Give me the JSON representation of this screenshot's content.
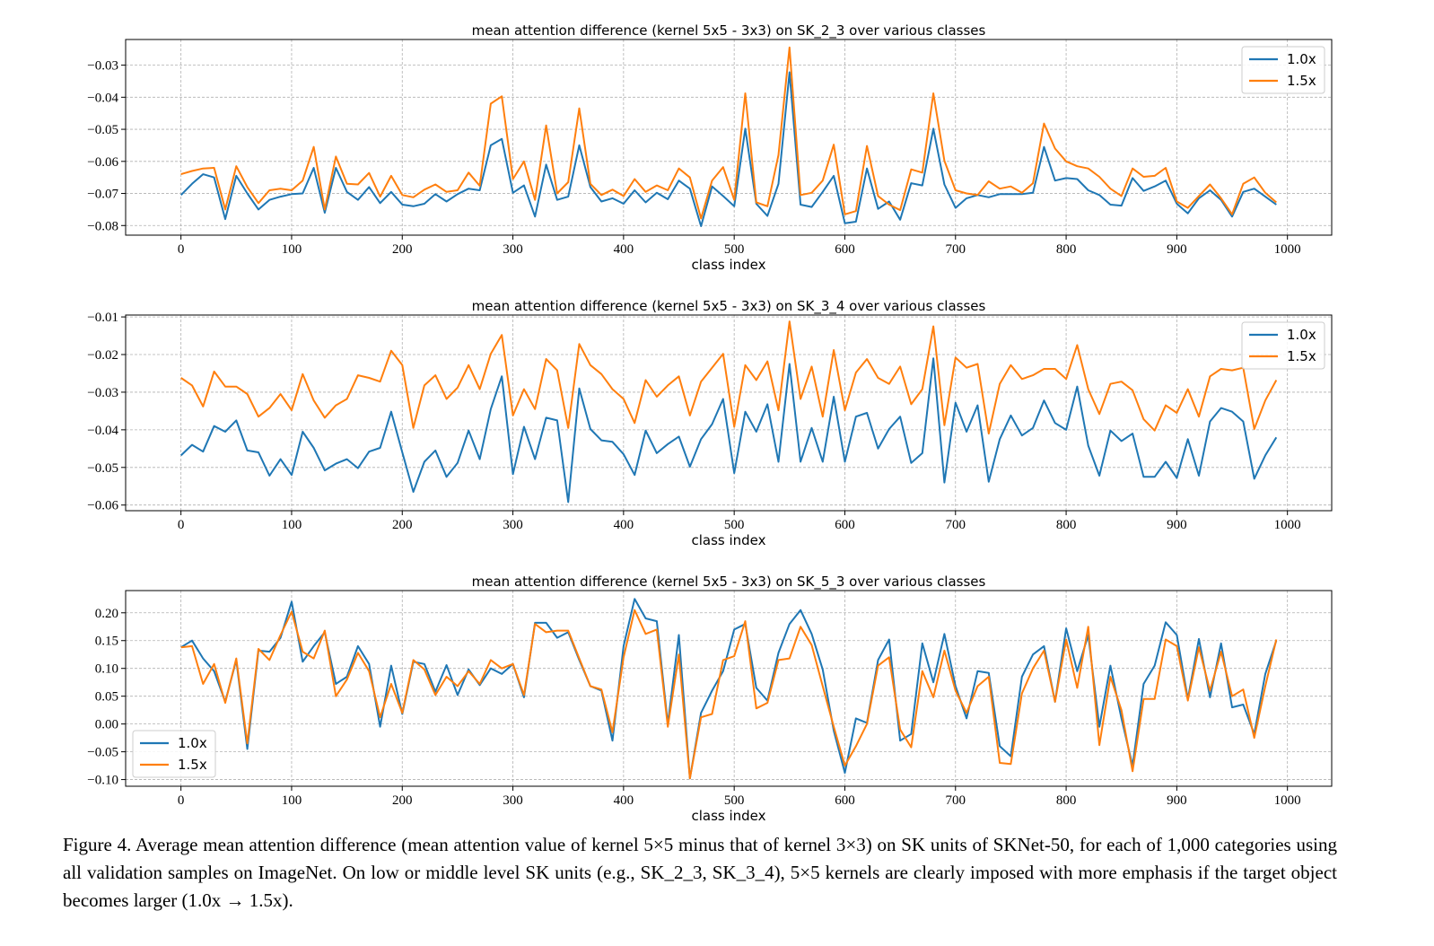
{
  "caption": "Figure 4. Average mean attention difference (mean attention value of kernel 5×5 minus that of kernel 3×3) on SK units of SKNet-50, for each of 1,000 categories using all validation samples on ImageNet. On low or middle level SK units (e.g., SK_2_3, SK_3_4), 5×5 kernels are clearly imposed with more emphasis if the target object becomes larger (1.0x → 1.5x).",
  "colors": {
    "s1": "#1f77b4",
    "s2": "#ff7f0e",
    "grid": "#b0b0b0"
  },
  "chart_data": [
    {
      "type": "line",
      "title": "mean attention difference (kernel 5x5 - 3x3) on SK_2_3 over various classes",
      "xlabel": "class index",
      "xlim": [
        -50,
        1040
      ],
      "xticks": [
        0,
        100,
        200,
        300,
        400,
        500,
        600,
        700,
        800,
        900,
        1000
      ],
      "ylim": [
        -0.083,
        -0.022
      ],
      "yticks": [
        -0.08,
        -0.07,
        -0.06,
        -0.05,
        -0.04,
        -0.03
      ],
      "ytick_labels": [
        "−0.08",
        "−0.07",
        "−0.06",
        "−0.05",
        "−0.04",
        "−0.03"
      ],
      "legend": "top-right",
      "grid": true,
      "x": [
        0,
        10,
        20,
        30,
        40,
        50,
        60,
        70,
        80,
        90,
        100,
        110,
        120,
        130,
        140,
        150,
        160,
        170,
        180,
        190,
        200,
        210,
        220,
        230,
        240,
        250,
        260,
        270,
        280,
        290,
        300,
        310,
        320,
        330,
        340,
        350,
        360,
        370,
        380,
        390,
        400,
        410,
        420,
        430,
        440,
        450,
        460,
        470,
        480,
        490,
        500,
        510,
        520,
        530,
        540,
        550,
        560,
        570,
        580,
        590,
        600,
        610,
        620,
        630,
        640,
        650,
        660,
        670,
        680,
        690,
        700,
        710,
        720,
        730,
        740,
        750,
        760,
        770,
        780,
        790,
        800,
        810,
        820,
        830,
        840,
        850,
        860,
        870,
        880,
        890,
        900,
        910,
        920,
        930,
        940,
        950,
        960,
        970,
        980,
        990
      ],
      "series": [
        {
          "name": "1.0x",
          "values": [
            -0.0705,
            -0.067,
            -0.064,
            -0.065,
            -0.078,
            -0.0645,
            -0.07,
            -0.075,
            -0.072,
            -0.071,
            -0.0702,
            -0.07,
            -0.062,
            -0.076,
            -0.062,
            -0.0695,
            -0.072,
            -0.068,
            -0.073,
            -0.0695,
            -0.0735,
            -0.074,
            -0.0732,
            -0.0702,
            -0.0725,
            -0.0702,
            -0.0685,
            -0.069,
            -0.055,
            -0.053,
            -0.0698,
            -0.0675,
            -0.0772,
            -0.061,
            -0.072,
            -0.071,
            -0.055,
            -0.068,
            -0.0725,
            -0.0715,
            -0.0732,
            -0.069,
            -0.0728,
            -0.0698,
            -0.0718,
            -0.066,
            -0.0685,
            -0.0802,
            -0.0678,
            -0.0708,
            -0.074,
            -0.0498,
            -0.0732,
            -0.077,
            -0.067,
            -0.0322,
            -0.0735,
            -0.0742,
            -0.0695,
            -0.0645,
            -0.0793,
            -0.0788,
            -0.0622,
            -0.0748,
            -0.0725,
            -0.0782,
            -0.0668,
            -0.0675,
            -0.0498,
            -0.0672,
            -0.0745,
            -0.0715,
            -0.0705,
            -0.0712,
            -0.0702,
            -0.0702,
            -0.0702,
            -0.0698,
            -0.0555,
            -0.066,
            -0.0652,
            -0.0655,
            -0.069,
            -0.0705,
            -0.0735,
            -0.0738,
            -0.0652,
            -0.0692,
            -0.0678,
            -0.066,
            -0.0732,
            -0.0762,
            -0.0715,
            -0.069,
            -0.072,
            -0.0772,
            -0.0695,
            -0.0685,
            -0.071,
            -0.0735
          ]
        },
        {
          "name": "1.5x",
          "values": [
            -0.064,
            -0.063,
            -0.0622,
            -0.062,
            -0.075,
            -0.0615,
            -0.068,
            -0.073,
            -0.069,
            -0.0685,
            -0.069,
            -0.066,
            -0.0555,
            -0.075,
            -0.0585,
            -0.067,
            -0.0672,
            -0.0636,
            -0.071,
            -0.0645,
            -0.0705,
            -0.0712,
            -0.0688,
            -0.0672,
            -0.0695,
            -0.069,
            -0.0635,
            -0.0676,
            -0.042,
            -0.0397,
            -0.0655,
            -0.06,
            -0.072,
            -0.0488,
            -0.07,
            -0.0665,
            -0.0435,
            -0.067,
            -0.0705,
            -0.0688,
            -0.0708,
            -0.0655,
            -0.0695,
            -0.0675,
            -0.069,
            -0.0622,
            -0.065,
            -0.0778,
            -0.066,
            -0.0618,
            -0.072,
            -0.0388,
            -0.0728,
            -0.074,
            -0.058,
            -0.0245,
            -0.0705,
            -0.0698,
            -0.066,
            -0.0548,
            -0.0765,
            -0.0755,
            -0.0552,
            -0.0708,
            -0.0735,
            -0.0752,
            -0.0625,
            -0.0635,
            -0.0388,
            -0.0598,
            -0.069,
            -0.07,
            -0.0705,
            -0.0662,
            -0.0685,
            -0.0678,
            -0.0698,
            -0.0668,
            -0.0482,
            -0.056,
            -0.06,
            -0.0615,
            -0.0622,
            -0.0648,
            -0.0685,
            -0.0708,
            -0.0622,
            -0.0648,
            -0.0645,
            -0.062,
            -0.0725,
            -0.0745,
            -0.0708,
            -0.0672,
            -0.0715,
            -0.0765,
            -0.067,
            -0.065,
            -0.0698,
            -0.0728
          ]
        }
      ]
    },
    {
      "type": "line",
      "title": "mean attention difference (kernel 5x5 - 3x3) on SK_3_4 over various classes",
      "xlabel": "class index",
      "xlim": [
        -50,
        1040
      ],
      "xticks": [
        0,
        100,
        200,
        300,
        400,
        500,
        600,
        700,
        800,
        900,
        1000
      ],
      "ylim": [
        -0.0615,
        -0.0095
      ],
      "yticks": [
        -0.06,
        -0.05,
        -0.04,
        -0.03,
        -0.02,
        -0.01
      ],
      "ytick_labels": [
        "−0.06",
        "−0.05",
        "−0.04",
        "−0.03",
        "−0.02",
        "−0.01"
      ],
      "legend": "top-right",
      "grid": true,
      "x": [
        0,
        10,
        20,
        30,
        40,
        50,
        60,
        70,
        80,
        90,
        100,
        110,
        120,
        130,
        140,
        150,
        160,
        170,
        180,
        190,
        200,
        210,
        220,
        230,
        240,
        250,
        260,
        270,
        280,
        290,
        300,
        310,
        320,
        330,
        340,
        350,
        360,
        370,
        380,
        390,
        400,
        410,
        420,
        430,
        440,
        450,
        460,
        470,
        480,
        490,
        500,
        510,
        520,
        530,
        540,
        550,
        560,
        570,
        580,
        590,
        600,
        610,
        620,
        630,
        640,
        650,
        660,
        670,
        680,
        690,
        700,
        710,
        720,
        730,
        740,
        750,
        760,
        770,
        780,
        790,
        800,
        810,
        820,
        830,
        840,
        850,
        860,
        870,
        880,
        890,
        900,
        910,
        920,
        930,
        940,
        950,
        960,
        970,
        980,
        990
      ],
      "series": [
        {
          "name": "1.0x",
          "values": [
            -0.0468,
            -0.044,
            -0.0458,
            -0.039,
            -0.0405,
            -0.0375,
            -0.0455,
            -0.046,
            -0.0522,
            -0.0478,
            -0.052,
            -0.0405,
            -0.0448,
            -0.0508,
            -0.049,
            -0.0478,
            -0.0502,
            -0.0458,
            -0.0448,
            -0.0352,
            -0.046,
            -0.0565,
            -0.0485,
            -0.0455,
            -0.0525,
            -0.0488,
            -0.0402,
            -0.0478,
            -0.0345,
            -0.0258,
            -0.0518,
            -0.0392,
            -0.0478,
            -0.0368,
            -0.0375,
            -0.0592,
            -0.029,
            -0.0398,
            -0.0428,
            -0.0432,
            -0.0465,
            -0.052,
            -0.0402,
            -0.0462,
            -0.0438,
            -0.0418,
            -0.0498,
            -0.0425,
            -0.0385,
            -0.0318,
            -0.0515,
            -0.0352,
            -0.0405,
            -0.0332,
            -0.0485,
            -0.0225,
            -0.0485,
            -0.0395,
            -0.0485,
            -0.0312,
            -0.0485,
            -0.0365,
            -0.0355,
            -0.045,
            -0.0398,
            -0.0365,
            -0.0488,
            -0.0462,
            -0.021,
            -0.054,
            -0.0328,
            -0.0405,
            -0.0335,
            -0.0538,
            -0.0425,
            -0.0362,
            -0.0415,
            -0.0395,
            -0.0322,
            -0.0382,
            -0.04,
            -0.0285,
            -0.0442,
            -0.0522,
            -0.0402,
            -0.043,
            -0.041,
            -0.0525,
            -0.0525,
            -0.0485,
            -0.0528,
            -0.0425,
            -0.0522,
            -0.0378,
            -0.0342,
            -0.0352,
            -0.0378,
            -0.053,
            -0.0468,
            -0.042
          ]
        },
        {
          "name": "1.5x",
          "values": [
            -0.0262,
            -0.0282,
            -0.0338,
            -0.0245,
            -0.0285,
            -0.0285,
            -0.0305,
            -0.0365,
            -0.0342,
            -0.0305,
            -0.0348,
            -0.0252,
            -0.0322,
            -0.0368,
            -0.0335,
            -0.0318,
            -0.0255,
            -0.0262,
            -0.0272,
            -0.019,
            -0.0228,
            -0.0395,
            -0.0282,
            -0.0255,
            -0.0318,
            -0.0288,
            -0.0228,
            -0.0292,
            -0.0198,
            -0.0148,
            -0.0362,
            -0.0292,
            -0.0345,
            -0.0212,
            -0.0242,
            -0.0395,
            -0.0172,
            -0.0228,
            -0.0252,
            -0.0292,
            -0.0318,
            -0.0382,
            -0.0268,
            -0.0312,
            -0.0282,
            -0.0258,
            -0.0362,
            -0.0272,
            -0.0235,
            -0.0198,
            -0.0392,
            -0.0228,
            -0.0268,
            -0.0218,
            -0.0348,
            -0.0112,
            -0.0318,
            -0.0232,
            -0.0365,
            -0.0188,
            -0.0348,
            -0.0248,
            -0.0212,
            -0.0262,
            -0.0278,
            -0.0232,
            -0.0332,
            -0.0292,
            -0.0125,
            -0.0388,
            -0.0208,
            -0.0235,
            -0.0225,
            -0.041,
            -0.0278,
            -0.0228,
            -0.0265,
            -0.0255,
            -0.0238,
            -0.0238,
            -0.0265,
            -0.0175,
            -0.0292,
            -0.0358,
            -0.0278,
            -0.0272,
            -0.0295,
            -0.0372,
            -0.0402,
            -0.0335,
            -0.0355,
            -0.0292,
            -0.0365,
            -0.0258,
            -0.0238,
            -0.0242,
            -0.0235,
            -0.0398,
            -0.0322,
            -0.0268
          ]
        }
      ]
    },
    {
      "type": "line",
      "title": "mean attention difference (kernel 5x5 - 3x3) on SK_5_3 over various classes",
      "xlabel": "class index",
      "xlim": [
        -50,
        1040
      ],
      "xticks": [
        0,
        100,
        200,
        300,
        400,
        500,
        600,
        700,
        800,
        900,
        1000
      ],
      "ylim": [
        -0.112,
        0.24
      ],
      "yticks": [
        -0.1,
        -0.05,
        0.0,
        0.05,
        0.1,
        0.15,
        0.2
      ],
      "ytick_labels": [
        "−0.10",
        "−0.05",
        "0.00",
        "0.05",
        "0.10",
        "0.15",
        "0.20"
      ],
      "legend": "bottom-left",
      "grid": true,
      "x": [
        0,
        10,
        20,
        30,
        40,
        50,
        60,
        70,
        80,
        90,
        100,
        110,
        120,
        130,
        140,
        150,
        160,
        170,
        180,
        190,
        200,
        210,
        220,
        230,
        240,
        250,
        260,
        270,
        280,
        290,
        300,
        310,
        320,
        330,
        340,
        350,
        360,
        370,
        380,
        390,
        400,
        410,
        420,
        430,
        440,
        450,
        460,
        470,
        480,
        490,
        500,
        510,
        520,
        530,
        540,
        550,
        560,
        570,
        580,
        590,
        600,
        610,
        620,
        630,
        640,
        650,
        660,
        670,
        680,
        690,
        700,
        710,
        720,
        730,
        740,
        750,
        760,
        770,
        780,
        790,
        800,
        810,
        820,
        830,
        840,
        850,
        860,
        870,
        880,
        890,
        900,
        910,
        920,
        930,
        940,
        950,
        960,
        970,
        980,
        990
      ],
      "series": [
        {
          "name": "1.0x",
          "values": [
            0.138,
            0.15,
            0.118,
            0.095,
            0.04,
            0.115,
            -0.045,
            0.132,
            0.13,
            0.155,
            0.22,
            0.112,
            0.14,
            0.165,
            0.072,
            0.085,
            0.14,
            0.108,
            -0.005,
            0.105,
            0.018,
            0.112,
            0.108,
            0.058,
            0.106,
            0.052,
            0.098,
            0.07,
            0.1,
            0.09,
            0.108,
            0.048,
            0.182,
            0.182,
            0.155,
            0.165,
            0.115,
            0.068,
            0.06,
            -0.03,
            0.14,
            0.225,
            0.19,
            0.185,
            0.0,
            0.16,
            -0.098,
            0.02,
            0.06,
            0.095,
            0.17,
            0.18,
            0.065,
            0.042,
            0.128,
            0.18,
            0.205,
            0.162,
            0.098,
            -0.012,
            -0.088,
            0.01,
            0.002,
            0.115,
            0.152,
            -0.03,
            -0.018,
            0.145,
            0.075,
            0.162,
            0.068,
            0.01,
            0.095,
            0.092,
            -0.04,
            -0.058,
            0.085,
            0.125,
            0.14,
            0.04,
            0.172,
            0.095,
            0.16,
            -0.005,
            0.105,
            0.01,
            -0.075,
            0.072,
            0.105,
            0.183,
            0.16,
            0.045,
            0.153,
            0.048,
            0.145,
            0.03,
            0.035,
            -0.018,
            0.09,
            0.15
          ]
        },
        {
          "name": "1.5x",
          "values": [
            0.138,
            0.14,
            0.072,
            0.108,
            0.038,
            0.118,
            -0.035,
            0.135,
            0.115,
            0.16,
            0.202,
            0.13,
            0.118,
            0.168,
            0.05,
            0.08,
            0.128,
            0.095,
            0.012,
            0.072,
            0.02,
            0.115,
            0.098,
            0.052,
            0.085,
            0.068,
            0.095,
            0.072,
            0.115,
            0.1,
            0.108,
            0.052,
            0.18,
            0.165,
            0.168,
            0.168,
            0.118,
            0.068,
            0.062,
            -0.015,
            0.12,
            0.205,
            0.162,
            0.17,
            -0.005,
            0.125,
            -0.098,
            0.012,
            0.018,
            0.115,
            0.122,
            0.185,
            0.028,
            0.038,
            0.115,
            0.118,
            0.175,
            0.142,
            0.068,
            -0.005,
            -0.075,
            -0.04,
            0.0,
            0.105,
            0.12,
            -0.01,
            -0.042,
            0.095,
            0.048,
            0.132,
            0.06,
            0.02,
            0.068,
            0.085,
            -0.07,
            -0.072,
            0.055,
            0.1,
            0.132,
            0.04,
            0.152,
            0.065,
            0.175,
            -0.038,
            0.085,
            0.025,
            -0.085,
            0.045,
            0.045,
            0.152,
            0.14,
            0.042,
            0.138,
            0.06,
            0.13,
            0.05,
            0.062,
            -0.025,
            0.068,
            0.152
          ]
        }
      ]
    }
  ]
}
